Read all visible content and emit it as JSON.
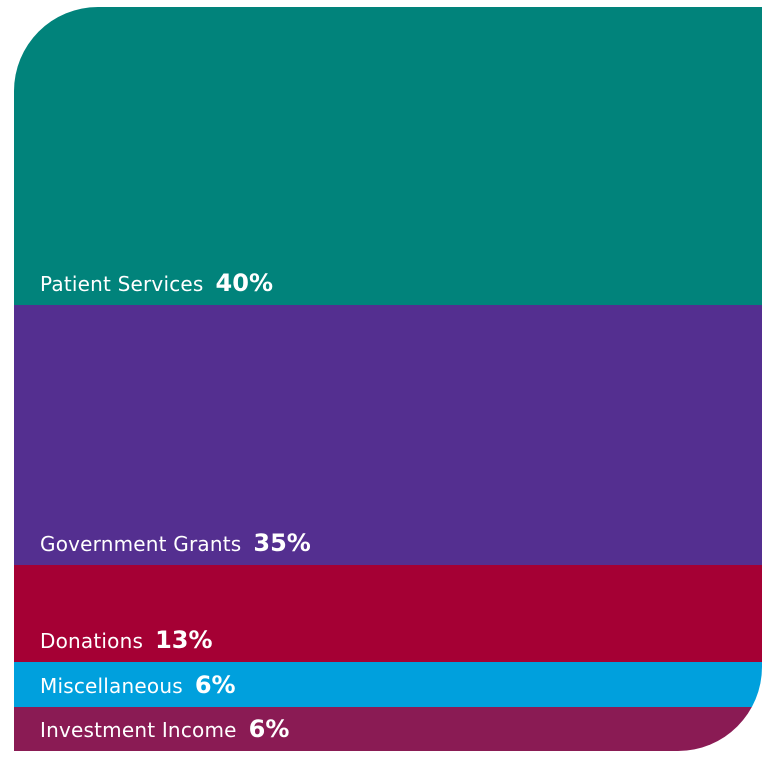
{
  "chart_data": {
    "type": "bar",
    "orientation": "stacked-100-vertical",
    "categories": [
      "Patient Services",
      "Government Grants",
      "Donations",
      "Miscellaneous",
      "Investment Income"
    ],
    "values": [
      40,
      35,
      13,
      6,
      6
    ],
    "value_labels": [
      "40%",
      "35%",
      "13%",
      "6%",
      "6%"
    ],
    "unit": "%",
    "colors": [
      "#01837b",
      "#542f90",
      "#a50034",
      "#00a0dd",
      "#8a1b54"
    ],
    "label_color": "#ffffff"
  }
}
